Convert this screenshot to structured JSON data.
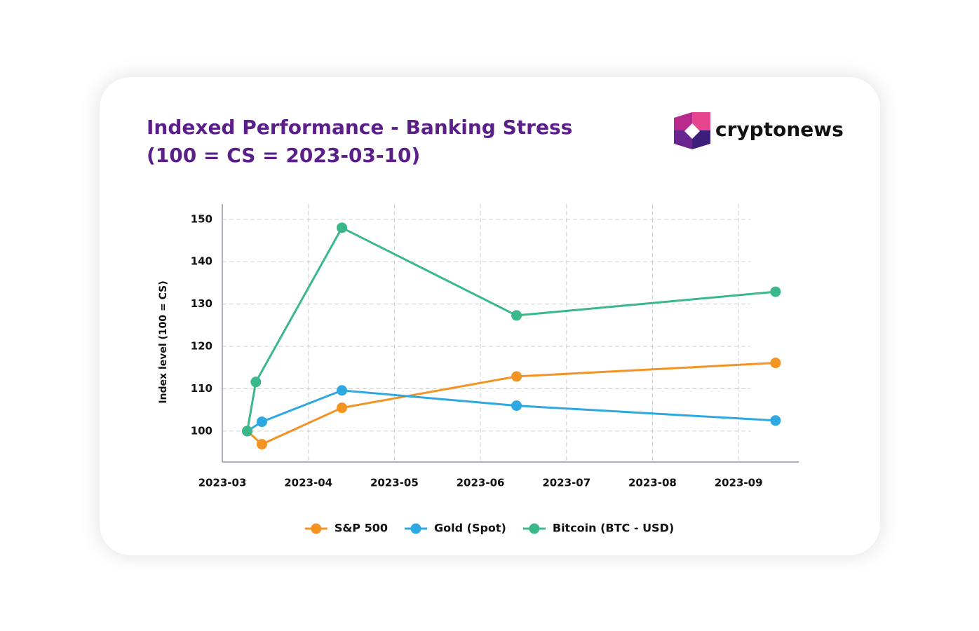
{
  "chart_data": {
    "type": "line",
    "title": "Indexed Performance - Banking Stress",
    "subtitle": "(100 = CS = 2023-03-10)",
    "logo": "cryptonews",
    "ylabel": "Index level (100 = CS)",
    "xlim": [
      0,
      6.7
    ],
    "xticks": [
      {
        "value": 0,
        "label": "2023-03"
      },
      {
        "value": 1,
        "label": "2023-04"
      },
      {
        "value": 2,
        "label": "2023-05"
      },
      {
        "value": 3,
        "label": "2023-06"
      },
      {
        "value": 4,
        "label": "2023-07"
      },
      {
        "value": 5,
        "label": "2023-08"
      },
      {
        "value": 6,
        "label": "2023-09"
      }
    ],
    "ylim": [
      92.7,
      153.6
    ],
    "yticks": [
      100,
      110,
      120,
      130,
      140,
      150
    ],
    "grid": true,
    "legend": "bottom",
    "series": [
      {
        "name": "S&P 500",
        "color": "#f39321",
        "x": [
          0.29,
          0.46,
          1.39,
          3.42,
          6.43
        ],
        "values": [
          100,
          96.9,
          105.5,
          112.9,
          116.1
        ]
      },
      {
        "name": "Gold (Spot)",
        "color": "#2ea8e0",
        "x": [
          0.29,
          0.46,
          1.39,
          3.42,
          6.43
        ],
        "values": [
          100,
          102.2,
          109.6,
          106.0,
          102.5
        ]
      },
      {
        "name": "Bitcoin (BTC - USD)",
        "color": "#3bb88a",
        "x": [
          0.29,
          0.39,
          1.39,
          3.42,
          6.43
        ],
        "values": [
          100,
          111.6,
          148.0,
          127.3,
          132.9
        ]
      }
    ]
  }
}
